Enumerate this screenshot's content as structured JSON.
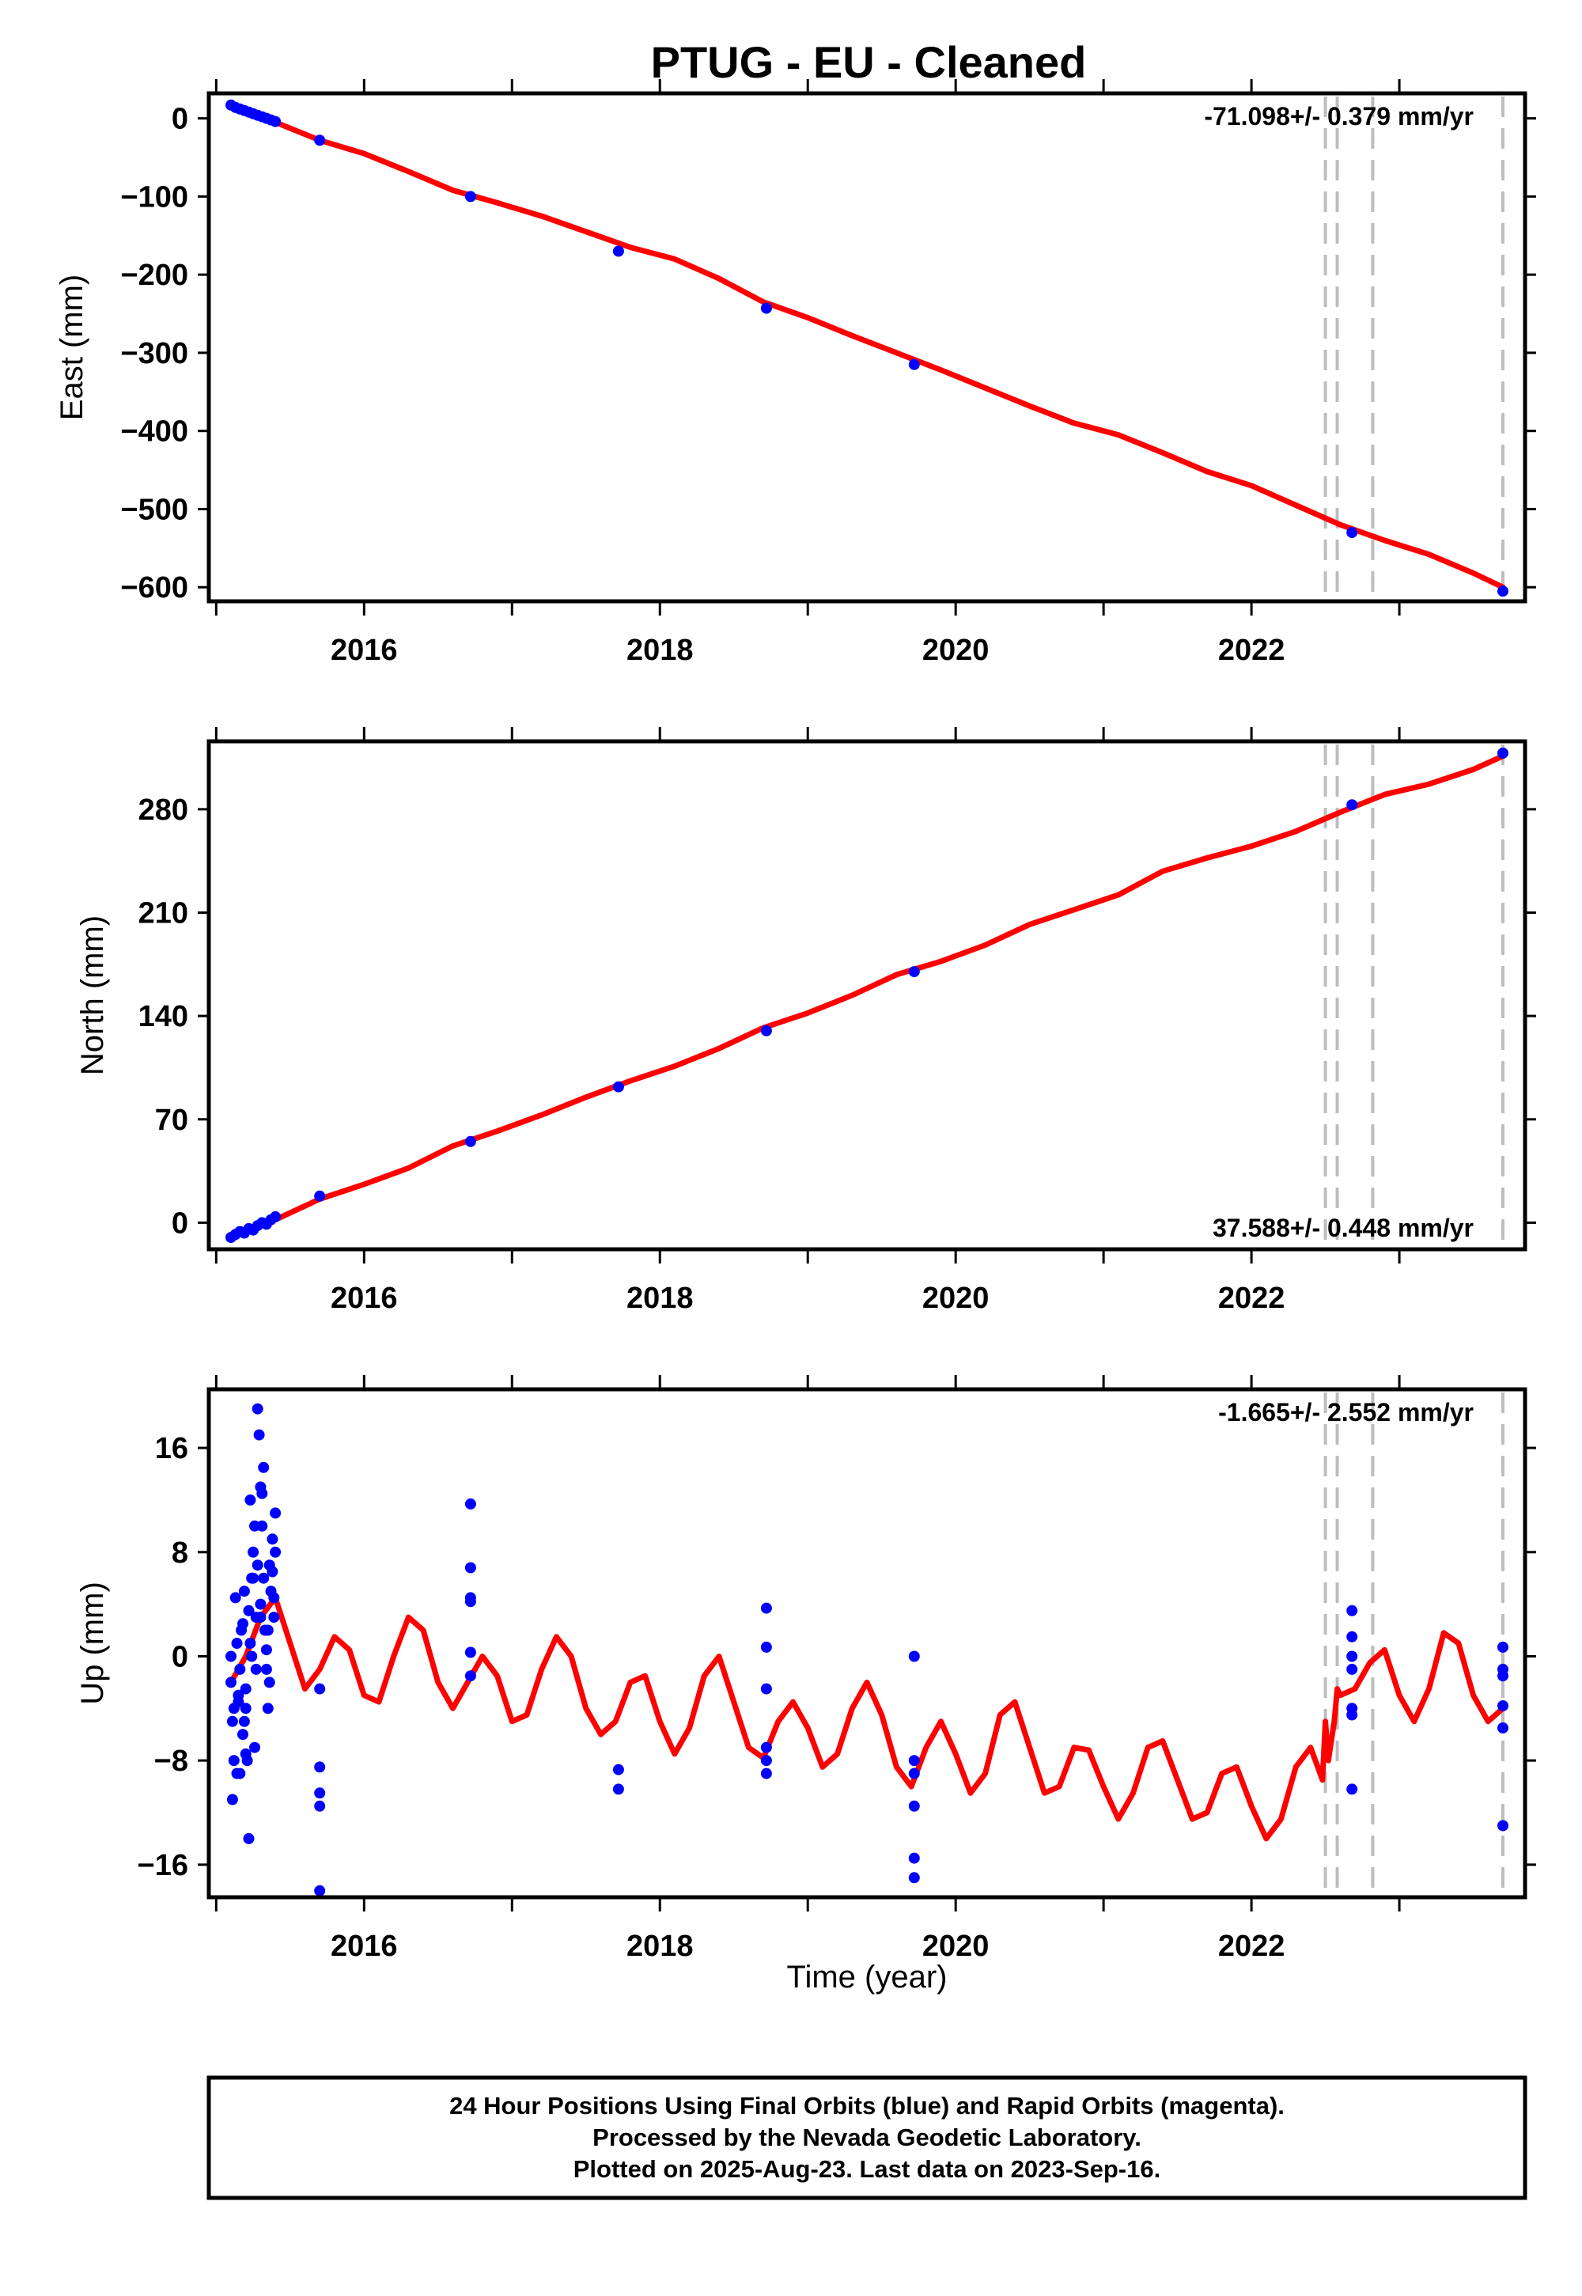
{
  "title": "PTUG  - EU - Cleaned",
  "colors": {
    "model": "#ff0000",
    "data": "#0000ff",
    "event_lines": "#bdbdbd"
  },
  "xlabel": "Time (year)",
  "footer": {
    "line1": "24 Hour Positions Using Final Orbits (blue) and Rapid Orbits (magenta).",
    "line2": "Processed by the Nevada Geodetic Laboratory.",
    "line3": "Plotted on 2025-Aug-23. Last data on 2023-Sep-16."
  },
  "chart_data": [
    {
      "type": "scatter",
      "panel": "east",
      "ylabel": "East (mm)",
      "rate_label": "-71.098+/- 0.379 mm/yr",
      "rate_position": "top-right",
      "xlim": [
        2014.95,
        2023.85
      ],
      "ylim": [
        -618,
        32
      ],
      "x_ticks": [
        2016,
        2018,
        2020,
        2022
      ],
      "y_ticks": [
        0,
        -100,
        -200,
        -300,
        -400,
        -500,
        -600
      ],
      "grid": false,
      "event_lines_x": [
        2022.5,
        2022.58,
        2022.82,
        2023.7
      ],
      "series": [
        {
          "role": "data",
          "x": [
            2015.1,
            2015.13,
            2015.16,
            2015.19,
            2015.22,
            2015.25,
            2015.28,
            2015.31,
            2015.34,
            2015.37,
            2015.4,
            2015.7,
            2016.72,
            2017.72,
            2018.72,
            2019.72,
            2022.68,
            2023.7
          ],
          "y": [
            17,
            14,
            12,
            10,
            8,
            6,
            4,
            2,
            0,
            -2,
            -4,
            -28,
            -100,
            -170,
            -243,
            -315,
            -530,
            -605
          ]
        },
        {
          "role": "model",
          "x": [
            2015.1,
            2015.4,
            2015.7,
            2016.0,
            2016.3,
            2016.6,
            2016.9,
            2017.2,
            2017.5,
            2017.8,
            2018.1,
            2018.4,
            2018.7,
            2019.0,
            2019.3,
            2019.6,
            2019.9,
            2020.2,
            2020.5,
            2020.8,
            2021.1,
            2021.4,
            2021.7,
            2022.0,
            2022.3,
            2022.6,
            2022.9,
            2023.2,
            2023.5,
            2023.7
          ],
          "y": [
            15,
            -5,
            -28,
            -45,
            -68,
            -92,
            -108,
            -125,
            -145,
            -165,
            -180,
            -205,
            -235,
            -255,
            -278,
            -300,
            -322,
            -345,
            -368,
            -390,
            -405,
            -428,
            -452,
            -470,
            -495,
            -520,
            -540,
            -558,
            -582,
            -600
          ]
        }
      ]
    },
    {
      "type": "scatter",
      "panel": "north",
      "ylabel": "North (mm)",
      "rate_label": "37.588+/- 0.448 mm/yr",
      "rate_position": "bottom-right",
      "xlim": [
        2014.95,
        2023.85
      ],
      "ylim": [
        -18,
        326
      ],
      "x_ticks": [
        2016,
        2018,
        2020,
        2022
      ],
      "y_ticks": [
        0,
        70,
        140,
        210,
        280
      ],
      "grid": false,
      "event_lines_x": [
        2022.5,
        2022.58,
        2022.82,
        2023.7
      ],
      "series": [
        {
          "role": "data",
          "x": [
            2015.1,
            2015.13,
            2015.16,
            2015.19,
            2015.22,
            2015.25,
            2015.28,
            2015.31,
            2015.34,
            2015.37,
            2015.4,
            2015.7,
            2016.72,
            2017.72,
            2018.72,
            2019.72,
            2022.68,
            2023.7
          ],
          "y": [
            -10,
            -8,
            -6,
            -7,
            -4,
            -5,
            -2,
            0,
            -1,
            2,
            4,
            18,
            55,
            92,
            130,
            170,
            283,
            318
          ]
        },
        {
          "role": "model",
          "x": [
            2015.1,
            2015.4,
            2015.7,
            2016.0,
            2016.3,
            2016.6,
            2016.9,
            2017.2,
            2017.5,
            2017.8,
            2018.1,
            2018.4,
            2018.7,
            2019.0,
            2019.3,
            2019.6,
            2019.9,
            2020.2,
            2020.5,
            2020.8,
            2021.1,
            2021.4,
            2021.7,
            2022.0,
            2022.3,
            2022.6,
            2022.9,
            2023.2,
            2023.5,
            2023.7
          ],
          "y": [
            -8,
            2,
            16,
            26,
            37,
            52,
            62,
            73,
            85,
            96,
            106,
            118,
            132,
            142,
            154,
            168,
            177,
            188,
            202,
            212,
            222,
            238,
            247,
            255,
            265,
            278,
            290,
            297,
            307,
            316
          ]
        }
      ]
    },
    {
      "type": "scatter",
      "panel": "up",
      "ylabel": "Up (mm)",
      "rate_label": "-1.665+/- 2.552 mm/yr",
      "rate_position": "top-right",
      "xlim": [
        2014.95,
        2023.85
      ],
      "ylim": [
        -18.5,
        20.5
      ],
      "x_ticks": [
        2016,
        2018,
        2020,
        2022
      ],
      "y_ticks": [
        -16,
        -8,
        0,
        8,
        16
      ],
      "grid": false,
      "event_lines_x": [
        2022.5,
        2022.58,
        2022.82,
        2023.7
      ],
      "series": [
        {
          "role": "data",
          "x": [
            2015.1,
            2015.11,
            2015.12,
            2015.13,
            2015.14,
            2015.15,
            2015.16,
            2015.17,
            2015.18,
            2015.19,
            2015.2,
            2015.21,
            2015.22,
            2015.23,
            2015.24,
            2015.25,
            2015.26,
            2015.27,
            2015.28,
            2015.29,
            2015.3,
            2015.31,
            2015.32,
            2015.33,
            2015.34,
            2015.35,
            2015.36,
            2015.37,
            2015.38,
            2015.39,
            2015.4,
            2015.1,
            2015.12,
            2015.14,
            2015.16,
            2015.18,
            2015.2,
            2015.22,
            2015.24,
            2015.26,
            2015.28,
            2015.3,
            2015.32,
            2015.34,
            2015.36,
            2015.38,
            2015.4,
            2015.11,
            2015.15,
            2015.19,
            2015.23,
            2015.27,
            2015.31,
            2015.35,
            2015.39,
            2015.2,
            2015.25,
            2015.3,
            2015.7,
            2015.7,
            2015.7,
            2015.7,
            2015.7,
            2016.72,
            2016.72,
            2016.72,
            2016.72,
            2016.72,
            2016.72,
            2017.72,
            2017.72,
            2018.72,
            2018.72,
            2018.72,
            2018.72,
            2018.72,
            2018.72,
            2019.72,
            2019.72,
            2019.72,
            2019.72,
            2019.72,
            2019.72,
            2022.68,
            2022.68,
            2022.68,
            2022.68,
            2022.68,
            2022.68,
            2022.68,
            2023.7,
            2023.7,
            2023.7,
            2023.7,
            2023.7,
            2023.7
          ],
          "y": [
            -2,
            -5,
            -8,
            4.5,
            -9,
            -3,
            -1,
            2,
            -6,
            5,
            -4,
            -8,
            -14,
            12,
            0,
            8,
            -7,
            3,
            19,
            17,
            13,
            10,
            6,
            2,
            -1,
            -4,
            7,
            5,
            9,
            3,
            11,
            0,
            -4,
            1,
            -9,
            2.5,
            -7.5,
            3.5,
            6,
            10,
            7,
            4,
            14.5,
            0.5,
            -2,
            6.5,
            8,
            -11,
            -3.5,
            -5,
            1,
            -1,
            12.5,
            2,
            4.5,
            -2.5,
            6,
            3,
            -2.5,
            -8.5,
            -10.5,
            -11.5,
            -18,
            11.7,
            6.8,
            4.5,
            4.2,
            0.3,
            -1.5,
            -8.7,
            -10.2,
            3.7,
            0.7,
            -2.5,
            -7,
            -8,
            -9,
            0,
            -8,
            -9,
            -11.5,
            -15.5,
            -17,
            3.5,
            1.5,
            0,
            -1,
            -4,
            -4.5,
            -10.2,
            0.7,
            -1,
            -1.5,
            -3.8,
            -5.5,
            -13
          ]
        },
        {
          "role": "model",
          "x": [
            2015.1,
            2015.2,
            2015.3,
            2015.4,
            2015.5,
            2015.6,
            2015.7,
            2015.8,
            2015.9,
            2016.0,
            2016.1,
            2016.2,
            2016.3,
            2016.4,
            2016.5,
            2016.6,
            2016.7,
            2016.8,
            2016.9,
            2017.0,
            2017.1,
            2017.2,
            2017.3,
            2017.4,
            2017.5,
            2017.6,
            2017.7,
            2017.8,
            2017.9,
            2018.0,
            2018.1,
            2018.2,
            2018.3,
            2018.4,
            2018.5,
            2018.6,
            2018.7,
            2018.8,
            2018.9,
            2019.0,
            2019.1,
            2019.2,
            2019.3,
            2019.4,
            2019.5,
            2019.6,
            2019.7,
            2019.8,
            2019.9,
            2020.0,
            2020.1,
            2020.2,
            2020.3,
            2020.4,
            2020.5,
            2020.6,
            2020.7,
            2020.8,
            2020.9,
            2021.0,
            2021.1,
            2021.2,
            2021.3,
            2021.4,
            2021.5,
            2021.6,
            2021.7,
            2021.8,
            2021.9,
            2022.0,
            2022.1,
            2022.2,
            2022.3,
            2022.4,
            2022.48,
            2022.5,
            2022.52,
            2022.56,
            2022.58,
            2022.6,
            2022.7,
            2022.8,
            2022.9,
            2023.0,
            2023.1,
            2023.2,
            2023.3,
            2023.4,
            2023.5,
            2023.6,
            2023.7
          ],
          "y": [
            -2,
            0,
            3,
            4.5,
            1,
            -2.5,
            -1,
            1.5,
            0.5,
            -3,
            -3.5,
            0,
            3,
            2,
            -2,
            -4,
            -2,
            0,
            -1.5,
            -5,
            -4.5,
            -1,
            1.5,
            0,
            -4,
            -6,
            -5,
            -2,
            -1.5,
            -5,
            -7.5,
            -5.5,
            -1.5,
            0,
            -3.5,
            -7,
            -7.8,
            -5,
            -3.5,
            -5.5,
            -8.5,
            -7.5,
            -4,
            -2,
            -4.5,
            -8.5,
            -10,
            -7,
            -5,
            -7.5,
            -10.5,
            -9,
            -4.5,
            -3.5,
            -7,
            -10.5,
            -10,
            -7,
            -7.2,
            -10,
            -12.5,
            -10.5,
            -7,
            -6.5,
            -9.5,
            -12.5,
            -12,
            -9,
            -8.5,
            -11.5,
            -14,
            -12.5,
            -8.5,
            -7,
            -9.5,
            -5,
            -8,
            -5,
            -2.5,
            -3,
            -2.5,
            -0.5,
            0.5,
            -3,
            -5,
            -2.5,
            1.8,
            1,
            -3,
            -5,
            -4
          ]
        }
      ]
    }
  ]
}
